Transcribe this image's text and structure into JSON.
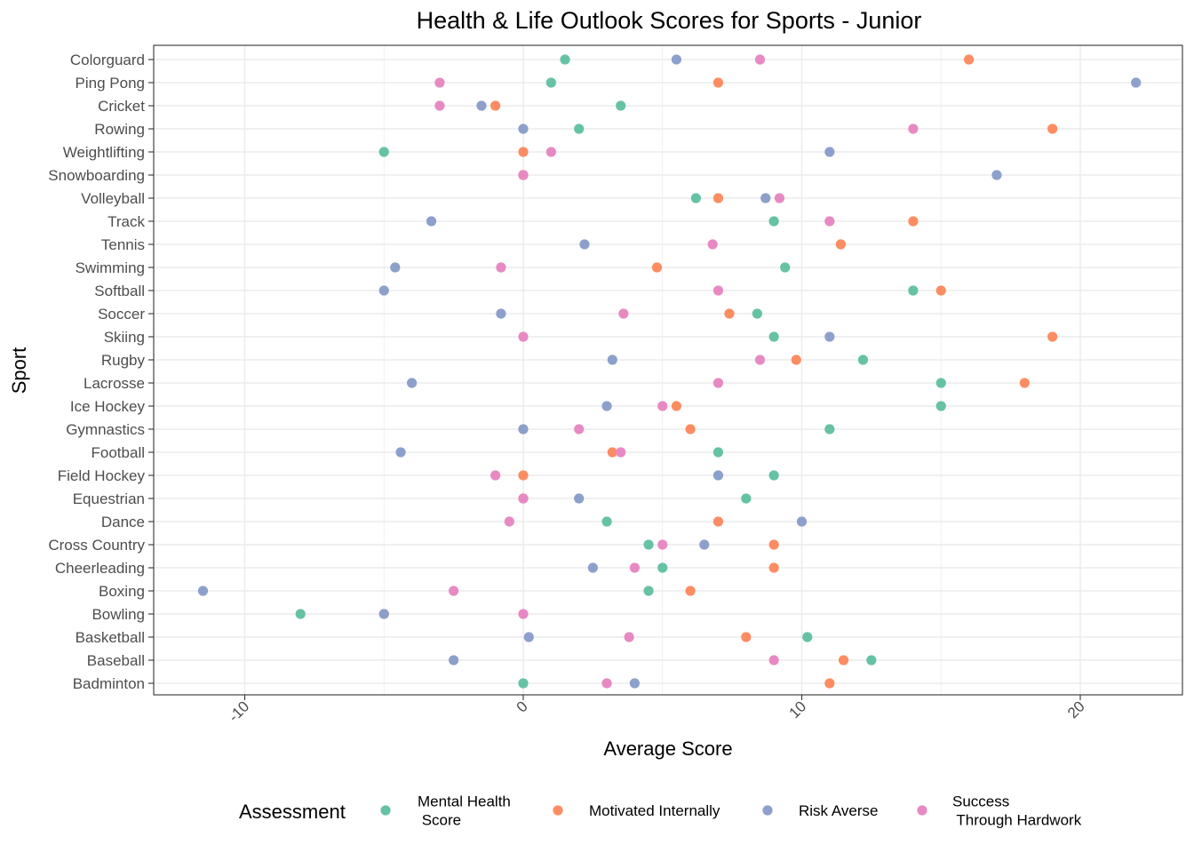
{
  "chart_data": {
    "type": "scatter",
    "title": "Health & Life Outlook Scores for Sports - Junior",
    "xlabel": "Average Score",
    "ylabel": "Sport",
    "xlim": [
      -13.5,
      23.5
    ],
    "x_ticks": [
      -10,
      0,
      10,
      20
    ],
    "x_tick_labels": [
      "-10",
      "0",
      "10",
      "20"
    ],
    "grid": true,
    "legend_position": "bottom",
    "legend_title": "Assessment",
    "categories": [
      "Colorguard",
      "Ping Pong",
      "Cricket",
      "Rowing",
      "Weightlifting",
      "Snowboarding",
      "Volleyball",
      "Track",
      "Tennis",
      "Swimming",
      "Softball",
      "Soccer",
      "Skiing",
      "Rugby",
      "Lacrosse",
      "Ice Hockey",
      "Gymnastics",
      "Football",
      "Field Hockey",
      "Equestrian",
      "Dance",
      "Cross Country",
      "Cheerleading",
      "Boxing",
      "Bowling",
      "Basketball",
      "Baseball",
      "Badminton"
    ],
    "series": [
      {
        "name": "Mental Health\n Score",
        "color": "#66c2a5",
        "values": [
          1.5,
          1.0,
          3.5,
          2.0,
          -5.0,
          0.0,
          6.2,
          9.0,
          11.4,
          9.4,
          14.0,
          8.4,
          9.0,
          12.2,
          15.0,
          15.0,
          11.0,
          7.0,
          9.0,
          8.0,
          3.0,
          4.5,
          5.0,
          4.5,
          -8.0,
          10.2,
          12.5,
          0.0
        ]
      },
      {
        "name": "Motivated Internally",
        "color": "#fc8d62",
        "values": [
          16.0,
          7.0,
          -1.0,
          19.0,
          0.0,
          0.0,
          7.0,
          14.0,
          11.4,
          4.8,
          15.0,
          7.4,
          19.0,
          9.8,
          18.0,
          5.5,
          6.0,
          3.2,
          0.0,
          0.0,
          7.0,
          9.0,
          9.0,
          6.0,
          -5.0,
          8.0,
          11.5,
          11.0
        ]
      },
      {
        "name": "Risk Averse",
        "color": "#8da0cb",
        "values": [
          5.5,
          22.0,
          -1.5,
          0.0,
          11.0,
          17.0,
          8.7,
          -3.3,
          2.2,
          -4.6,
          -5.0,
          -0.8,
          11.0,
          3.2,
          -4.0,
          3.0,
          0.0,
          -4.4,
          7.0,
          2.0,
          10.0,
          6.5,
          2.5,
          -11.5,
          -5.0,
          0.2,
          -2.5,
          4.0
        ]
      },
      {
        "name": "Success\n Through Hardwork",
        "color": "#e78ac3",
        "values": [
          8.5,
          -3.0,
          -3.0,
          14.0,
          1.0,
          0.0,
          9.2,
          11.0,
          6.8,
          -0.8,
          7.0,
          3.6,
          0.0,
          8.5,
          7.0,
          5.0,
          2.0,
          3.5,
          -1.0,
          0.0,
          -0.5,
          5.0,
          4.0,
          -2.5,
          0.0,
          3.8,
          9.0,
          3.0
        ]
      }
    ]
  }
}
